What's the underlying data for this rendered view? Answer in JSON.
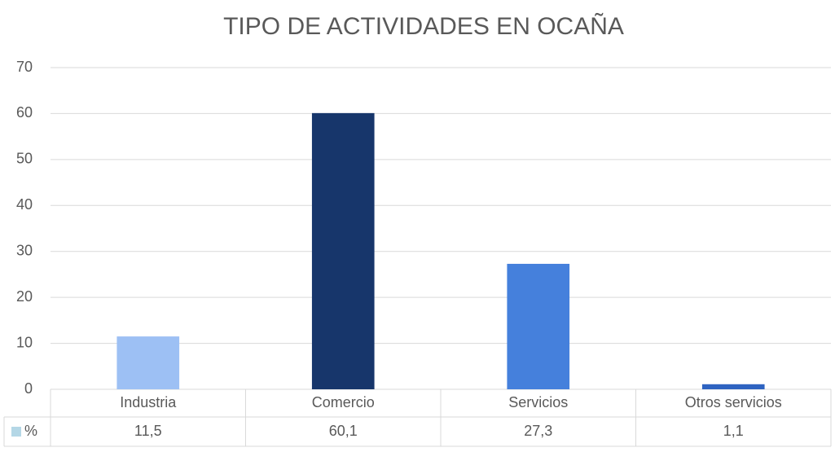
{
  "chart_data": {
    "type": "bar",
    "title": "TIPO DE ACTIVIDADES EN OCAÑA",
    "categories": [
      "Industria",
      "Comercio",
      "Servicios",
      "Otros servicios"
    ],
    "series": [
      {
        "name": "%",
        "color": "#b4d7e6",
        "colors": [
          "#9dc0f4",
          "#17366b",
          "#4580dc",
          "#2e63c1"
        ],
        "values": [
          11.5,
          60.1,
          27.3,
          1.1
        ],
        "value_labels": [
          "11,5",
          "60,1",
          "27,3",
          "1,1"
        ]
      }
    ],
    "ylim": [
      0,
      70
    ],
    "yticks": [
      0,
      10,
      20,
      30,
      40,
      50,
      60,
      70
    ],
    "grid": true,
    "data_table": true
  }
}
